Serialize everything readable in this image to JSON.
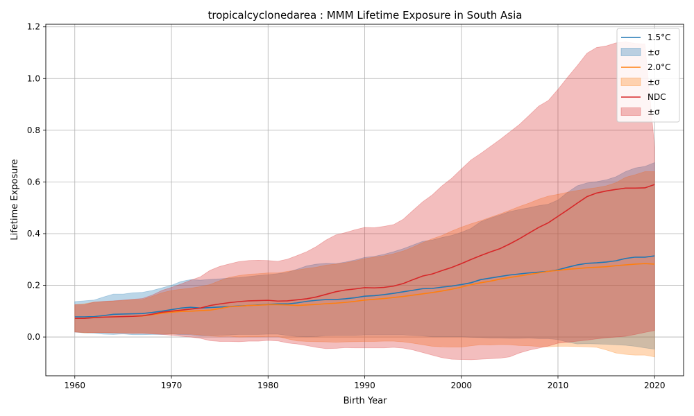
{
  "chart_data": {
    "type": "line",
    "title": "tropicalcyclonedarea : MMM Lifetime Exposure in South Asia",
    "xlabel": "Birth Year",
    "ylabel": "Lifetime Exposure",
    "xlim": [
      1957,
      2023
    ],
    "ylim": [
      -0.15,
      1.21
    ],
    "xticks": [
      1960,
      1970,
      1980,
      1990,
      2000,
      2010,
      2020
    ],
    "xtick_labels": [
      "1960",
      "1970",
      "1980",
      "1990",
      "2000",
      "2010",
      "2020"
    ],
    "yticks": [
      0.0,
      0.2,
      0.4,
      0.6,
      0.8,
      1.0,
      1.2
    ],
    "ytick_labels": [
      "0.0",
      "0.2",
      "0.4",
      "0.6",
      "0.8",
      "1.0",
      "1.2"
    ],
    "grid": true,
    "legend_position": "top-right",
    "x": [
      1960,
      1961,
      1962,
      1963,
      1964,
      1965,
      1966,
      1967,
      1968,
      1969,
      1970,
      1971,
      1972,
      1973,
      1974,
      1975,
      1976,
      1977,
      1978,
      1979,
      1980,
      1981,
      1982,
      1983,
      1984,
      1985,
      1986,
      1987,
      1988,
      1989,
      1990,
      1991,
      1992,
      1993,
      1994,
      1995,
      1996,
      1997,
      1998,
      1999,
      2000,
      2001,
      2002,
      2003,
      2004,
      2005,
      2006,
      2007,
      2008,
      2009,
      2010,
      2011,
      2012,
      2013,
      2014,
      2015,
      2016,
      2017,
      2018,
      2019,
      2020
    ],
    "series": [
      {
        "name": "1.5°C",
        "band_label": "±σ",
        "color": "#1f77b4",
        "band_color": "#1f77b4",
        "mean": [
          0.078,
          0.078,
          0.079,
          0.083,
          0.088,
          0.089,
          0.09,
          0.091,
          0.095,
          0.1,
          0.106,
          0.112,
          0.115,
          0.112,
          0.114,
          0.116,
          0.118,
          0.12,
          0.122,
          0.124,
          0.126,
          0.128,
          0.128,
          0.132,
          0.138,
          0.142,
          0.145,
          0.145,
          0.148,
          0.152,
          0.158,
          0.16,
          0.164,
          0.169,
          0.175,
          0.181,
          0.187,
          0.188,
          0.193,
          0.197,
          0.203,
          0.21,
          0.222,
          0.228,
          0.234,
          0.24,
          0.244,
          0.248,
          0.251,
          0.254,
          0.26,
          0.27,
          0.279,
          0.285,
          0.287,
          0.29,
          0.295,
          0.304,
          0.309,
          0.309,
          0.314
        ],
        "upper": [
          0.137,
          0.14,
          0.143,
          0.155,
          0.166,
          0.166,
          0.171,
          0.173,
          0.18,
          0.19,
          0.2,
          0.215,
          0.222,
          0.22,
          0.223,
          0.225,
          0.228,
          0.23,
          0.234,
          0.238,
          0.241,
          0.245,
          0.25,
          0.262,
          0.275,
          0.282,
          0.285,
          0.284,
          0.29,
          0.298,
          0.308,
          0.312,
          0.32,
          0.33,
          0.342,
          0.356,
          0.37,
          0.375,
          0.385,
          0.393,
          0.405,
          0.42,
          0.446,
          0.46,
          0.472,
          0.485,
          0.493,
          0.5,
          0.508,
          0.514,
          0.53,
          0.56,
          0.585,
          0.596,
          0.601,
          0.608,
          0.62,
          0.64,
          0.654,
          0.66,
          0.675
        ],
        "lower": [
          0.019,
          0.016,
          0.015,
          0.011,
          0.01,
          0.012,
          0.009,
          0.009,
          0.01,
          0.01,
          0.012,
          0.009,
          0.008,
          0.004,
          0.005,
          0.007,
          0.008,
          0.01,
          0.01,
          0.01,
          0.011,
          0.011,
          0.006,
          0.002,
          0.001,
          0.002,
          0.005,
          0.006,
          0.006,
          0.006,
          0.008,
          0.008,
          0.008,
          0.008,
          0.008,
          0.006,
          0.004,
          0.001,
          0.001,
          0.001,
          0.001,
          -0.001,
          -0.002,
          -0.004,
          -0.004,
          -0.005,
          -0.005,
          -0.004,
          -0.006,
          -0.006,
          -0.01,
          -0.02,
          -0.027,
          -0.026,
          -0.027,
          -0.028,
          -0.03,
          -0.032,
          -0.036,
          -0.042,
          -0.047
        ]
      },
      {
        "name": "2.0°C",
        "band_label": "±σ",
        "color": "#ff7f0e",
        "band_color": "#ff7f0e",
        "mean": [
          0.072,
          0.073,
          0.076,
          0.077,
          0.078,
          0.079,
          0.08,
          0.081,
          0.086,
          0.092,
          0.096,
          0.099,
          0.1,
          0.102,
          0.104,
          0.11,
          0.117,
          0.119,
          0.122,
          0.123,
          0.125,
          0.125,
          0.124,
          0.122,
          0.124,
          0.126,
          0.129,
          0.131,
          0.134,
          0.138,
          0.143,
          0.146,
          0.149,
          0.153,
          0.157,
          0.162,
          0.167,
          0.172,
          0.178,
          0.185,
          0.193,
          0.202,
          0.21,
          0.216,
          0.224,
          0.23,
          0.236,
          0.242,
          0.248,
          0.254,
          0.258,
          0.262,
          0.265,
          0.268,
          0.27,
          0.272,
          0.276,
          0.279,
          0.282,
          0.284,
          0.282
        ],
        "upper": [
          0.125,
          0.129,
          0.135,
          0.137,
          0.139,
          0.141,
          0.144,
          0.145,
          0.157,
          0.171,
          0.18,
          0.185,
          0.189,
          0.195,
          0.203,
          0.218,
          0.231,
          0.238,
          0.243,
          0.245,
          0.248,
          0.248,
          0.254,
          0.259,
          0.265,
          0.27,
          0.278,
          0.282,
          0.287,
          0.294,
          0.303,
          0.309,
          0.314,
          0.322,
          0.333,
          0.348,
          0.365,
          0.38,
          0.393,
          0.41,
          0.425,
          0.438,
          0.45,
          0.463,
          0.476,
          0.49,
          0.505,
          0.518,
          0.533,
          0.545,
          0.552,
          0.56,
          0.567,
          0.573,
          0.578,
          0.585,
          0.597,
          0.618,
          0.628,
          0.64,
          0.64
        ],
        "lower": [
          0.02,
          0.016,
          0.017,
          0.017,
          0.016,
          0.016,
          0.015,
          0.016,
          0.014,
          0.012,
          0.011,
          0.012,
          0.011,
          0.008,
          0.004,
          0.002,
          0.003,
          0.0,
          0.001,
          0.001,
          0.002,
          0.002,
          -0.007,
          -0.015,
          -0.017,
          -0.018,
          -0.019,
          -0.02,
          -0.019,
          -0.018,
          -0.017,
          -0.017,
          -0.016,
          -0.016,
          -0.019,
          -0.024,
          -0.03,
          -0.036,
          -0.038,
          -0.039,
          -0.039,
          -0.034,
          -0.03,
          -0.031,
          -0.029,
          -0.03,
          -0.033,
          -0.034,
          -0.037,
          -0.038,
          -0.036,
          -0.036,
          -0.037,
          -0.038,
          -0.04,
          -0.05,
          -0.062,
          -0.067,
          -0.07,
          -0.07,
          -0.077
        ]
      },
      {
        "name": "NDC",
        "band_label": "±σ",
        "color": "#d62728",
        "band_color": "#d62728",
        "mean": [
          0.072,
          0.072,
          0.075,
          0.077,
          0.078,
          0.079,
          0.08,
          0.082,
          0.088,
          0.096,
          0.1,
          0.104,
          0.108,
          0.112,
          0.122,
          0.128,
          0.133,
          0.137,
          0.14,
          0.141,
          0.142,
          0.139,
          0.14,
          0.144,
          0.148,
          0.155,
          0.165,
          0.175,
          0.182,
          0.186,
          0.191,
          0.19,
          0.192,
          0.197,
          0.207,
          0.222,
          0.236,
          0.244,
          0.257,
          0.269,
          0.284,
          0.3,
          0.315,
          0.329,
          0.342,
          0.36,
          0.38,
          0.402,
          0.424,
          0.442,
          0.467,
          0.492,
          0.518,
          0.543,
          0.557,
          0.565,
          0.571,
          0.576,
          0.576,
          0.577,
          0.59
        ],
        "upper": [
          0.125,
          0.125,
          0.135,
          0.138,
          0.14,
          0.143,
          0.146,
          0.149,
          0.162,
          0.18,
          0.192,
          0.205,
          0.22,
          0.233,
          0.258,
          0.273,
          0.283,
          0.292,
          0.296,
          0.297,
          0.296,
          0.293,
          0.301,
          0.315,
          0.33,
          0.35,
          0.375,
          0.395,
          0.404,
          0.415,
          0.424,
          0.423,
          0.428,
          0.435,
          0.456,
          0.49,
          0.523,
          0.55,
          0.585,
          0.614,
          0.65,
          0.685,
          0.71,
          0.737,
          0.764,
          0.793,
          0.822,
          0.857,
          0.893,
          0.915,
          0.958,
          1.005,
          1.05,
          1.098,
          1.12,
          1.126,
          1.138,
          1.142,
          1.136,
          1.134,
          0.735
        ],
        "lower": [
          0.019,
          0.018,
          0.017,
          0.017,
          0.016,
          0.015,
          0.014,
          0.014,
          0.012,
          0.01,
          0.007,
          0.003,
          0.0,
          -0.005,
          -0.014,
          -0.017,
          -0.017,
          -0.018,
          -0.016,
          -0.016,
          -0.013,
          -0.015,
          -0.023,
          -0.027,
          -0.033,
          -0.04,
          -0.045,
          -0.044,
          -0.041,
          -0.042,
          -0.042,
          -0.042,
          -0.042,
          -0.04,
          -0.043,
          -0.05,
          -0.06,
          -0.07,
          -0.08,
          -0.086,
          -0.087,
          -0.088,
          -0.086,
          -0.084,
          -0.082,
          -0.077,
          -0.062,
          -0.051,
          -0.043,
          -0.035,
          -0.024,
          -0.02,
          -0.016,
          -0.012,
          -0.007,
          -0.003,
          0.0,
          0.003,
          0.01,
          0.018,
          0.025
        ]
      }
    ]
  }
}
